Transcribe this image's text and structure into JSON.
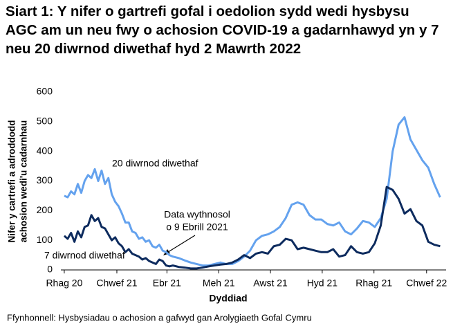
{
  "chart_data": {
    "type": "line",
    "title": "Siart 1: Y nifer o gartrefi gofal i oedolion sydd wedi hysbysu AGC am un neu fwy o achosion COVID-19 a gadarnhawyd yn y 7 neu 20 diwrnod diwethaf hyd 2 Mawrth 2022",
    "xlabel": "Dyddiad",
    "ylabel": [
      "Nifer y cartrefi a adroddodd",
      "achosion wedi'u cadarnhau"
    ],
    "source": "Ffynhonnell: Hysbysiadau o achosion a gafwyd gan Arolygiaeth Gofal Cymru",
    "annotations": [
      [
        "Data wythnosol",
        "o 9 Ebrill 2021"
      ]
    ],
    "x": [
      0,
      4,
      8,
      12,
      16,
      20,
      24,
      28,
      32,
      36,
      40,
      44,
      48,
      52,
      56,
      60,
      64,
      68,
      72,
      76,
      80,
      84,
      88,
      92,
      96,
      100,
      104,
      108,
      112,
      116,
      120,
      124,
      128,
      135,
      142,
      149,
      156,
      163,
      170,
      177,
      184,
      191,
      198,
      205,
      212,
      219,
      226,
      233,
      240,
      247,
      254,
      261,
      268,
      275,
      282,
      289,
      296,
      303,
      310,
      317,
      324,
      331,
      338,
      345,
      352,
      359,
      366,
      373,
      380,
      387,
      394,
      401,
      408,
      415,
      422,
      429,
      436,
      443
    ],
    "series": [
      {
        "name": "20 diwrnod diwethaf",
        "color": "#64a2ee",
        "values": [
          250,
          245,
          265,
          255,
          290,
          260,
          300,
          320,
          310,
          340,
          300,
          335,
          290,
          310,
          255,
          230,
          215,
          190,
          160,
          160,
          130,
          125,
          105,
          110,
          95,
          100,
          80,
          75,
          85,
          65,
          60,
          50,
          45,
          40,
          32,
          25,
          20,
          15,
          15,
          20,
          25,
          20,
          20,
          30,
          45,
          65,
          100,
          115,
          120,
          130,
          145,
          175,
          220,
          228,
          220,
          185,
          170,
          170,
          155,
          150,
          160,
          130,
          120,
          140,
          165,
          160,
          145,
          175,
          240,
          400,
          490,
          515,
          440,
          405,
          370,
          345,
          290,
          245
        ]
      },
      {
        "name": "7 diwrnod diwethaf",
        "color": "#0d2b5e",
        "values": [
          115,
          105,
          125,
          95,
          130,
          110,
          145,
          150,
          185,
          165,
          175,
          145,
          140,
          120,
          100,
          110,
          90,
          80,
          60,
          70,
          55,
          50,
          45,
          35,
          40,
          30,
          25,
          20,
          35,
          30,
          15,
          12,
          15,
          10,
          8,
          5,
          5,
          8,
          12,
          15,
          18,
          20,
          25,
          35,
          50,
          40,
          55,
          60,
          55,
          80,
          85,
          105,
          100,
          70,
          75,
          70,
          65,
          60,
          60,
          70,
          45,
          50,
          80,
          60,
          55,
          60,
          90,
          150,
          280,
          270,
          240,
          190,
          205,
          165,
          150,
          95,
          85,
          80
        ]
      }
    ],
    "xlim": [
      -4,
      450
    ],
    "xticks": [
      {
        "value": 0,
        "label": "Rhag 20"
      },
      {
        "value": 62,
        "label": "Chwef 21"
      },
      {
        "value": 121,
        "label": "Ebr 21"
      },
      {
        "value": 182,
        "label": "Meh 21"
      },
      {
        "value": 243,
        "label": "Awst 21"
      },
      {
        "value": 304,
        "label": "Hyd 21"
      },
      {
        "value": 365,
        "label": "Rhag 21"
      },
      {
        "value": 427,
        "label": "Chwef 22"
      }
    ],
    "ylim": [
      0,
      600
    ],
    "yticks": [
      0,
      100,
      200,
      300,
      400,
      500,
      600
    ]
  }
}
